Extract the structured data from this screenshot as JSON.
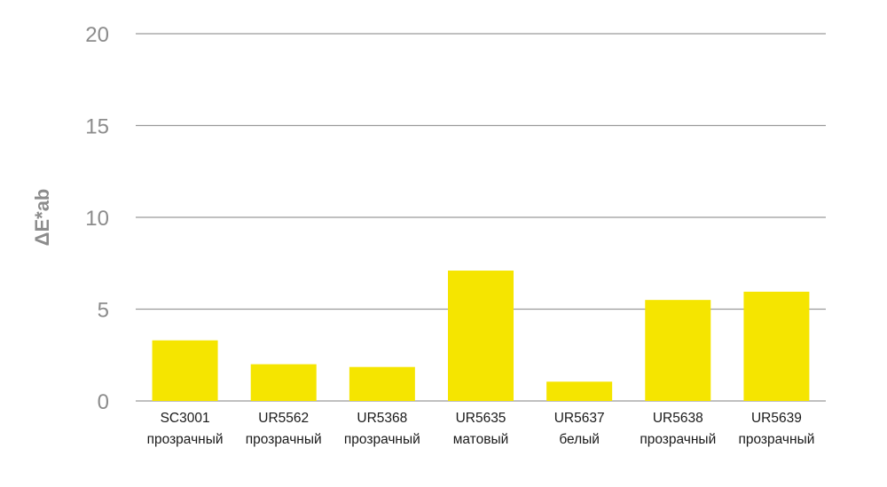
{
  "chart_data": {
    "type": "bar",
    "ylabel": "ΔE*ab",
    "xlabel": "",
    "ylim": [
      0,
      20
    ],
    "yticks": [
      0,
      5,
      10,
      15,
      20
    ],
    "grid": true,
    "bar_color": "#f5e500",
    "categories": [
      {
        "line1": "SC3001",
        "line2": "прозрачный"
      },
      {
        "line1": "UR5562",
        "line2": "прозрачный"
      },
      {
        "line1": "UR5368",
        "line2": "прозрачный"
      },
      {
        "line1": "UR5635",
        "line2": "матовый"
      },
      {
        "line1": "UR5637",
        "line2": "белый"
      },
      {
        "line1": "UR5638",
        "line2": "прозрачный"
      },
      {
        "line1": "UR5639",
        "line2": "прозрачный"
      }
    ],
    "values": [
      3.3,
      2.0,
      1.85,
      7.1,
      1.05,
      5.5,
      5.95
    ]
  }
}
